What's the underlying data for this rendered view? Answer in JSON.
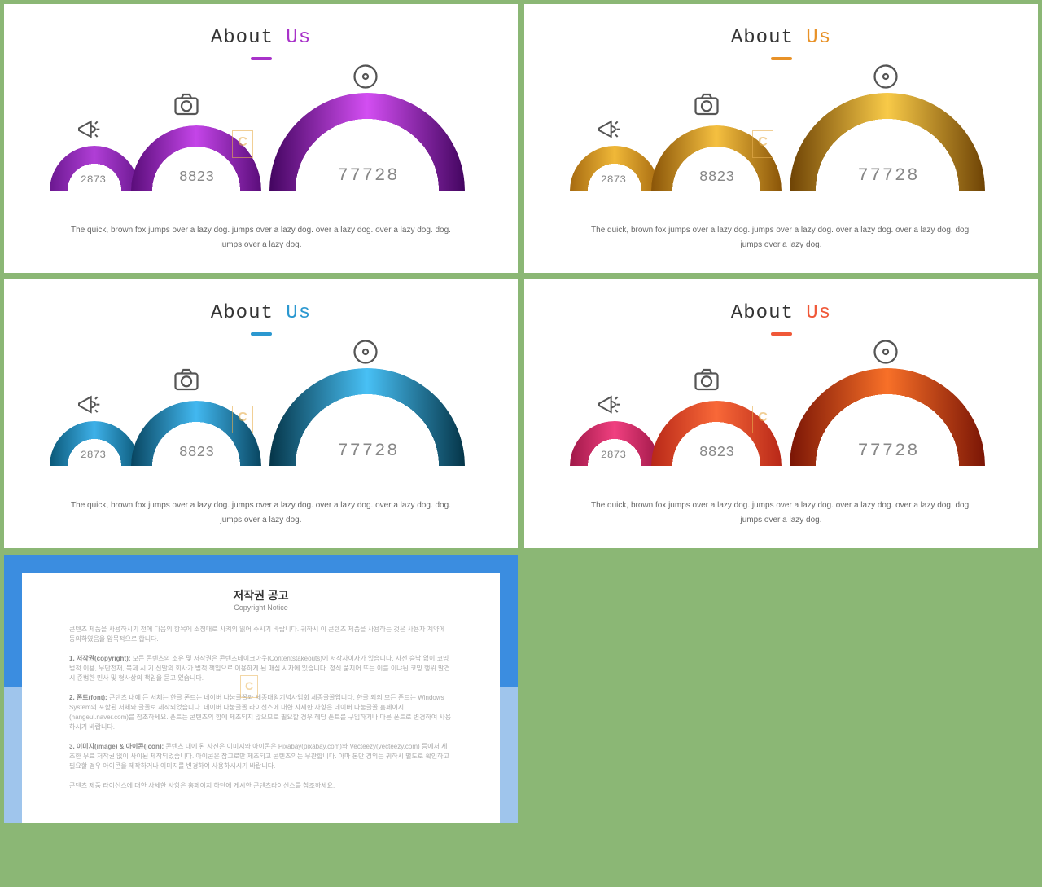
{
  "title": {
    "about": "About",
    "us": "Us"
  },
  "arches": {
    "values": [
      "2873",
      "8823",
      "77728"
    ],
    "icons": [
      "megaphone-icon",
      "camera-icon",
      "disc-icon"
    ]
  },
  "description": "The quick, brown fox jumps over a lazy dog. jumps over a lazy dog. over a lazy dog. over a lazy dog. dog. jumps over a lazy dog.",
  "variants": [
    {
      "accent": "#a832c9",
      "underline": "#a832c9",
      "arch1": {
        "c1": "#6b1890",
        "c2": "#b03ed6"
      },
      "arch2": {
        "c1": "#5a0d7a",
        "c2": "#c445e8"
      },
      "arch3": {
        "c1": "#430560",
        "c2": "#d34ef2"
      }
    },
    {
      "accent": "#e89228",
      "underline": "#e89228",
      "arch1": {
        "c1": "#a66a10",
        "c2": "#f0b838"
      },
      "arch2": {
        "c1": "#8a5508",
        "c2": "#f5c040"
      },
      "arch3": {
        "c1": "#6e4305",
        "c2": "#f8ca48"
      }
    },
    {
      "accent": "#2b98d0",
      "underline": "#2b98d0",
      "arch1": {
        "c1": "#0a5878",
        "c2": "#3eb0e8"
      },
      "arch2": {
        "c1": "#084560",
        "c2": "#42b8f0"
      },
      "arch3": {
        "c1": "#053548",
        "c2": "#48c0f5"
      }
    },
    {
      "accent": "#f05838",
      "underline": "#f05838",
      "arch1": {
        "c1": "#a01848",
        "c2": "#f04080"
      },
      "arch2": {
        "c1": "#b82818",
        "c2": "#f86838"
      },
      "arch3": {
        "c1": "#7a1505",
        "c2": "#f87028"
      }
    }
  ],
  "watermark": "C",
  "copyright": {
    "title": "저작권 공고",
    "subtitle": "Copyright Notice",
    "p1": "콘텐츠 제품을 사용하시기 전에 다음의 항목에 소정대로 사켜의 읽어 주시기 바랍니다. 귀하시 이 콘텐츠 제품을 사용하는 것은 사용자 계약에 동의하였음을 암묵적으로 합니다.",
    "p2_label": "1. 저작권(copyright):",
    "p2": "모든 콘텐츠의 소유 및 저작권은 콘텐츠테이크아웃(Contentstakeouts)에 저작사이자가 있습니다. 사전 승낙 없이 코밍법적 이용, 무단전재, 복제 시 기 신발의 회사가 법적 책임으로 이용하게 된 매심 시자에 있습니다. 정식 품지어 또는 이를 이냐된 코밍 행위 발견 시 준법한 민사 및 형사상의 책임을 묻고 있습니다.",
    "p3_label": "2. 폰트(font):",
    "p3": "콘텐츠 내에 든 서체는 한글 폰트는 네이버 나눔글꼴와 세종대왕기념사업회 세종글꼴입니다. 한글 외의 모든 폰트는 Windows System의 포함된 서체와 글꼴로 제작되었습니다. 네이버 나눔글꼴 라이선스에 대한 사세한 사항은 네이버 나눔글꼴 홈페이지(hangeul.naver.com)를 참조하세요. 폰트는 콘텐츠의 함에 제조되지 않으므로 필요할 경우 헤당 폰트를 구입하거나 다른 폰트로 변경하여 사용하시기 바랍니다.",
    "p4_label": "3. 이미지(image) & 아이콘(icon):",
    "p4": "콘텐츠 내에 된 사진은 이미지와 아이콘은 Pixabay(pixabay.com)와 Vecteezy(vecteezy.com) 등에서 세조한 무료 저작권 없이 사이된 제작되었습니다. 아이콘은 참고로만 제조되고 콘텐츠의는 무관합니다. 아마 본만 경외는 귀하시 별도로 확인하고 필요할 경우 아이콘을 제작하거나 이미지를 변경하여 사용하시시기 바랍니다.",
    "p5": "콘텐츠 제품 라이선스에 대한 사세한 사항은 홈페이지 하단에 게시한 콘텐츠라이선스를 참조하세요."
  }
}
